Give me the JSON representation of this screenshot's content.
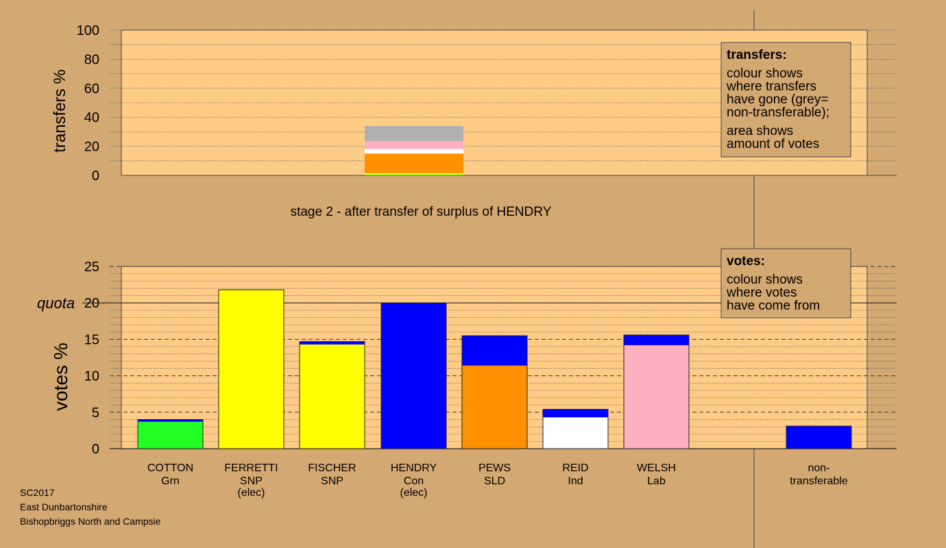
{
  "stage_title": "stage 2 - after transfer of surplus of HENDRY",
  "footer": {
    "line1": "SC2017",
    "line2": "East Dunbartonshire",
    "line3": "Bishopbriggs North and Campsie"
  },
  "colors": {
    "background": "#D4A872",
    "plot_bg": "#FFCC88",
    "grn": "#22FF22",
    "snp": "#FFFF00",
    "con": "#0000FF",
    "sld": "#FF9000",
    "ind": "#FFFFFF",
    "lab": "#FFB0C0",
    "nontransferable": "#B0B0B0"
  },
  "chart_data": [
    {
      "id": "transfers",
      "type": "bar",
      "stacked": true,
      "ylabel": "transfers %",
      "ylim": [
        0,
        100
      ],
      "yticks": [
        0,
        20,
        40,
        60,
        80,
        100
      ],
      "grid": true,
      "legend_box": {
        "title": "transfers:",
        "lines": [
          "colour shows",
          "where transfers",
          "have gone (grey=",
          "non-transferable);"
        ],
        "lines2": [
          "area shows",
          "amount of votes"
        ]
      },
      "bars": [
        {
          "category": "HENDRY",
          "segments": [
            {
              "value": 0.5,
              "color": "#22FF22"
            },
            {
              "value": 1.0,
              "color": "#FFFF00"
            },
            {
              "value": 13.5,
              "color": "#FF9000"
            },
            {
              "value": 3.2,
              "color": "#FFFFFF"
            },
            {
              "value": 5.3,
              "color": "#FFB0C0"
            },
            {
              "value": 10.5,
              "color": "#B0B0B0"
            }
          ]
        }
      ]
    },
    {
      "id": "votes",
      "type": "bar",
      "stacked": true,
      "ylabel": "votes %",
      "ylim": [
        0,
        25
      ],
      "yticks": [
        0,
        5,
        10,
        15,
        20,
        25
      ],
      "quota": 20,
      "quota_label": "quota",
      "grid": true,
      "legend_box": {
        "title": "votes:",
        "lines": [
          "colour shows",
          "where votes",
          "have come from"
        ]
      },
      "categories": [
        {
          "name": "COTTON",
          "party": "Grn",
          "note": ""
        },
        {
          "name": "FERRETTI",
          "party": "SNP",
          "note": "(elec)"
        },
        {
          "name": "FISCHER",
          "party": "SNP",
          "note": ""
        },
        {
          "name": "HENDRY",
          "party": "Con",
          "note": "(elec)"
        },
        {
          "name": "PEWS",
          "party": "SLD",
          "note": ""
        },
        {
          "name": "REID",
          "party": "Ind",
          "note": ""
        },
        {
          "name": "WELSH",
          "party": "Lab",
          "note": ""
        }
      ],
      "nontransferable_label": [
        "non-",
        "transferable"
      ],
      "bars": [
        {
          "category": "COTTON",
          "segments": [
            {
              "value": 3.7,
              "color": "#22FF22"
            },
            {
              "value": 0.3,
              "color": "#0000FF"
            }
          ]
        },
        {
          "category": "FERRETTI",
          "segments": [
            {
              "value": 21.8,
              "color": "#FFFF00"
            }
          ]
        },
        {
          "category": "FISCHER",
          "segments": [
            {
              "value": 14.3,
              "color": "#FFFF00"
            },
            {
              "value": 0.4,
              "color": "#0000FF"
            }
          ]
        },
        {
          "category": "HENDRY",
          "segments": [
            {
              "value": 20.0,
              "color": "#0000FF"
            }
          ]
        },
        {
          "category": "PEWS",
          "segments": [
            {
              "value": 11.4,
              "color": "#FF9000"
            },
            {
              "value": 4.1,
              "color": "#0000FF"
            }
          ]
        },
        {
          "category": "REID",
          "segments": [
            {
              "value": 4.3,
              "color": "#FFFFFF"
            },
            {
              "value": 1.1,
              "color": "#0000FF"
            }
          ]
        },
        {
          "category": "WELSH",
          "segments": [
            {
              "value": 14.2,
              "color": "#FFB0C0"
            },
            {
              "value": 1.4,
              "color": "#0000FF"
            }
          ]
        },
        {
          "category": "non-transferable",
          "segments": [
            {
              "value": 3.1,
              "color": "#0000FF"
            }
          ]
        }
      ]
    }
  ]
}
